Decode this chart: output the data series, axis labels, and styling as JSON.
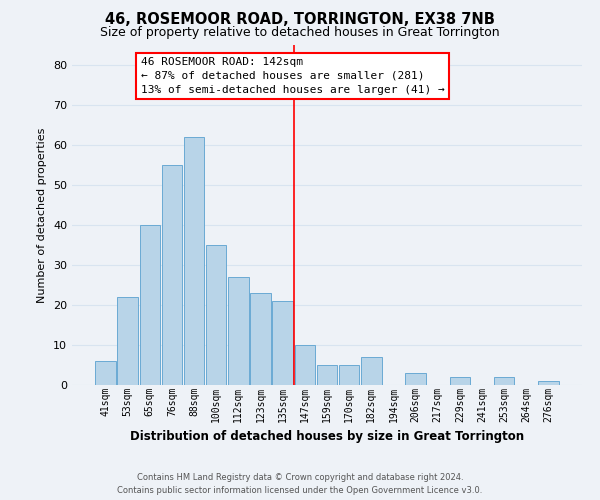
{
  "title": "46, ROSEMOOR ROAD, TORRINGTON, EX38 7NB",
  "subtitle": "Size of property relative to detached houses in Great Torrington",
  "xlabel": "Distribution of detached houses by size in Great Torrington",
  "ylabel": "Number of detached properties",
  "footer_line1": "Contains HM Land Registry data © Crown copyright and database right 2024.",
  "footer_line2": "Contains public sector information licensed under the Open Government Licence v3.0.",
  "bar_labels": [
    "41sqm",
    "53sqm",
    "65sqm",
    "76sqm",
    "88sqm",
    "100sqm",
    "112sqm",
    "123sqm",
    "135sqm",
    "147sqm",
    "159sqm",
    "170sqm",
    "182sqm",
    "194sqm",
    "206sqm",
    "217sqm",
    "229sqm",
    "241sqm",
    "253sqm",
    "264sqm",
    "276sqm"
  ],
  "bar_values": [
    6,
    22,
    40,
    55,
    62,
    35,
    27,
    23,
    21,
    10,
    5,
    5,
    7,
    0,
    3,
    0,
    2,
    0,
    2,
    0,
    1
  ],
  "bar_color": "#b8d4e8",
  "bar_edge_color": "#6aaad4",
  "ylim": [
    0,
    85
  ],
  "yticks": [
    0,
    10,
    20,
    30,
    40,
    50,
    60,
    70,
    80
  ],
  "annotation_title": "46 ROSEMOOR ROAD: 142sqm",
  "annotation_line1": "← 87% of detached houses are smaller (281)",
  "annotation_line2": "13% of semi-detached houses are larger (41) →",
  "vline_bar_index": 8.5,
  "background_color": "#eef2f7",
  "grid_color": "#d8e4f0",
  "title_fontsize": 10.5,
  "subtitle_fontsize": 9
}
